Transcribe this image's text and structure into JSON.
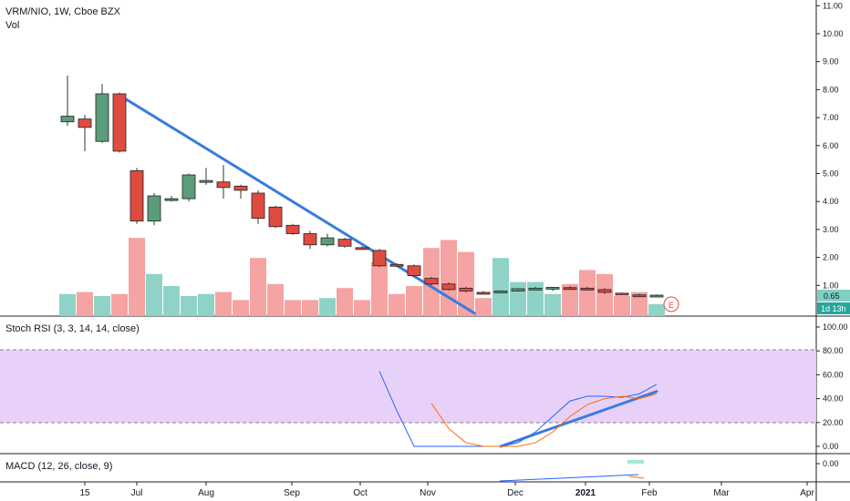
{
  "header": {
    "symbol_line": "VRM/NIO, 1W, Cboe BZX",
    "volume_label": "Vol"
  },
  "price_pane": {
    "price_ticks": [
      "11.00",
      "10.00",
      "9.00",
      "8.00",
      "7.00",
      "6.00",
      "5.00",
      "4.00",
      "3.00",
      "2.00",
      "1.00"
    ],
    "last_price_label": "0.65",
    "countdown_label": "1d 13h",
    "earnings_marker": "E"
  },
  "stoch_pane": {
    "title": "Stoch RSI (3, 3, 14, 14, close)",
    "ticks": [
      "100.00",
      "80.00",
      "60.00",
      "40.00",
      "20.00",
      "0.00"
    ]
  },
  "macd_pane": {
    "title": "MACD (12, 26, close, 9)",
    "ticks": [
      "0.00"
    ]
  },
  "time_axis": {
    "labels": [
      "15",
      "Jul",
      "Aug",
      "Sep",
      "Oct",
      "Nov",
      "Dec",
      "2021",
      "Feb",
      "Mar",
      "Apr"
    ]
  },
  "chart_data": {
    "type": "candlestick",
    "price_range": [
      0.0,
      11.2
    ],
    "candles": [
      {
        "o": 6.85,
        "h": 8.5,
        "l": 6.7,
        "c": 7.05
      },
      {
        "o": 6.95,
        "h": 7.1,
        "l": 5.8,
        "c": 6.65
      },
      {
        "o": 6.15,
        "h": 8.2,
        "l": 6.1,
        "c": 7.85
      },
      {
        "o": 7.85,
        "h": 7.9,
        "l": 5.75,
        "c": 5.8
      },
      {
        "o": 5.1,
        "h": 5.2,
        "l": 3.2,
        "c": 3.3
      },
      {
        "o": 3.3,
        "h": 4.3,
        "l": 3.15,
        "c": 4.2
      },
      {
        "o": 4.05,
        "h": 4.2,
        "l": 4.0,
        "c": 4.1
      },
      {
        "o": 4.1,
        "h": 5.0,
        "l": 4.0,
        "c": 4.95
      },
      {
        "o": 4.7,
        "h": 5.2,
        "l": 4.6,
        "c": 4.75
      },
      {
        "o": 4.7,
        "h": 5.3,
        "l": 4.1,
        "c": 4.5
      },
      {
        "o": 4.55,
        "h": 4.6,
        "l": 4.1,
        "c": 4.4
      },
      {
        "o": 4.3,
        "h": 4.4,
        "l": 3.2,
        "c": 3.4
      },
      {
        "o": 3.8,
        "h": 3.85,
        "l": 3.05,
        "c": 3.1
      },
      {
        "o": 3.15,
        "h": 3.2,
        "l": 2.8,
        "c": 2.85
      },
      {
        "o": 2.85,
        "h": 2.95,
        "l": 2.3,
        "c": 2.45
      },
      {
        "o": 2.45,
        "h": 2.85,
        "l": 2.4,
        "c": 2.7
      },
      {
        "o": 2.65,
        "h": 2.7,
        "l": 2.35,
        "c": 2.4
      },
      {
        "o": 2.35,
        "h": 2.4,
        "l": 2.3,
        "c": 2.32
      },
      {
        "o": 2.25,
        "h": 2.3,
        "l": 1.65,
        "c": 1.7
      },
      {
        "o": 1.75,
        "h": 1.8,
        "l": 1.7,
        "c": 1.72
      },
      {
        "o": 1.7,
        "h": 1.75,
        "l": 1.3,
        "c": 1.35
      },
      {
        "o": 1.25,
        "h": 1.3,
        "l": 1.0,
        "c": 1.05
      },
      {
        "o": 1.05,
        "h": 1.1,
        "l": 0.82,
        "c": 0.85
      },
      {
        "o": 0.9,
        "h": 0.95,
        "l": 0.75,
        "c": 0.8
      },
      {
        "o": 0.75,
        "h": 0.8,
        "l": 0.72,
        "c": 0.74
      },
      {
        "o": 0.75,
        "h": 0.82,
        "l": 0.74,
        "c": 0.8
      },
      {
        "o": 0.8,
        "h": 0.9,
        "l": 0.78,
        "c": 0.88
      },
      {
        "o": 0.88,
        "h": 0.95,
        "l": 0.86,
        "c": 0.9
      },
      {
        "o": 0.9,
        "h": 0.95,
        "l": 0.8,
        "c": 0.93
      },
      {
        "o": 0.92,
        "h": 0.97,
        "l": 0.88,
        "c": 0.9
      },
      {
        "o": 0.9,
        "h": 0.95,
        "l": 0.82,
        "c": 0.85
      },
      {
        "o": 0.85,
        "h": 0.9,
        "l": 0.7,
        "c": 0.75
      },
      {
        "o": 0.72,
        "h": 0.75,
        "l": 0.68,
        "c": 0.7
      },
      {
        "o": 0.66,
        "h": 0.7,
        "l": 0.6,
        "c": 0.63
      },
      {
        "o": 0.63,
        "h": 0.68,
        "l": 0.61,
        "c": 0.65
      }
    ],
    "volume": [
      0.55,
      0.6,
      0.5,
      0.55,
      1.95,
      1.05,
      0.75,
      0.5,
      0.55,
      0.6,
      0.4,
      1.45,
      0.8,
      0.4,
      0.4,
      0.45,
      0.7,
      0.4,
      1.35,
      0.55,
      0.75,
      1.7,
      1.9,
      1.6,
      0.45,
      1.45,
      0.85,
      0.85,
      0.55,
      0.8,
      1.15,
      1.05,
      0.5,
      0.6,
      0.3
    ],
    "stoch_k": [
      63,
      30,
      0,
      0,
      0,
      0,
      0,
      0,
      3,
      12,
      25,
      38,
      42,
      42,
      41,
      44,
      52
    ],
    "stoch_d": [
      null,
      null,
      null,
      36,
      15,
      3,
      0,
      0,
      0,
      3,
      12,
      25,
      35,
      40,
      42,
      40,
      44
    ],
    "stoch_start_index": 18,
    "stoch_range": [
      0,
      100
    ],
    "stoch_band": [
      20,
      80
    ],
    "trendlines": [
      {
        "pane": "price",
        "from": {
          "i": 3.0,
          "v": 7.8
        },
        "to": {
          "i": 23.5,
          "v": 0.0
        }
      },
      {
        "pane": "stoch",
        "from": {
          "i": 25.0,
          "v": 0
        },
        "to": {
          "i": 34.0,
          "v": 46
        }
      }
    ]
  }
}
